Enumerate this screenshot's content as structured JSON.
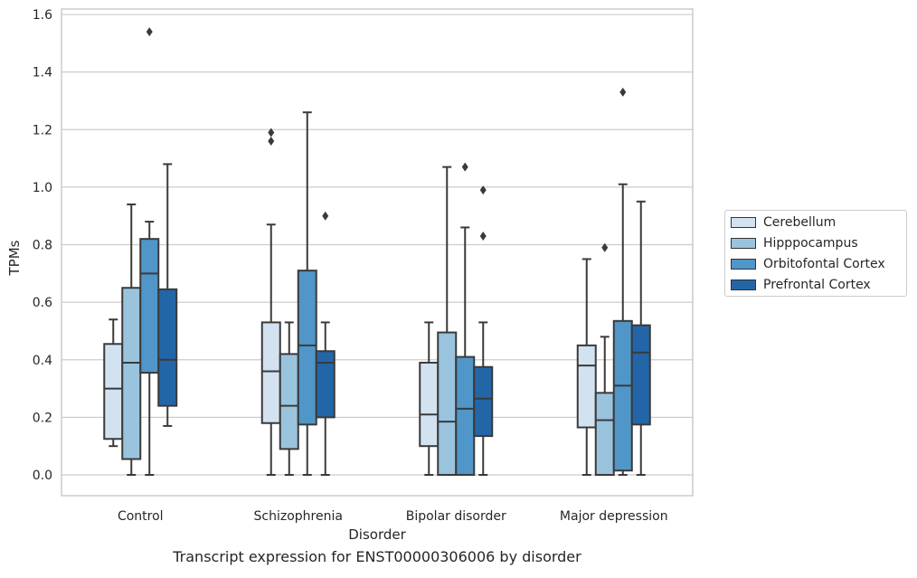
{
  "chart_data": {
    "type": "box",
    "title": "",
    "caption": "Transcript expression for ENST00000306006 by disorder",
    "xlabel": "Disorder",
    "ylabel": "TPMs",
    "ylim": [
      -0.075,
      1.62
    ],
    "yticks": [
      "0.0",
      "0.2",
      "0.4",
      "0.6",
      "0.8",
      "1.0",
      "1.2",
      "1.4",
      "1.6"
    ],
    "grid": "horizontal",
    "legend_position": "right",
    "categories": [
      "Control",
      "Schizophrenia",
      "Bipolar disorder",
      "Major depression"
    ],
    "series": [
      {
        "name": "Cerebellum",
        "color": "#d2e2f0",
        "boxes": [
          {
            "whisker_low": 0.1,
            "q1": 0.125,
            "median": 0.3,
            "q3": 0.455,
            "whisker_high": 0.54,
            "outliers": []
          },
          {
            "whisker_low": 0.0,
            "q1": 0.18,
            "median": 0.36,
            "q3": 0.53,
            "whisker_high": 0.87,
            "outliers": [
              1.16,
              1.19
            ]
          },
          {
            "whisker_low": 0.0,
            "q1": 0.1,
            "median": 0.21,
            "q3": 0.39,
            "whisker_high": 0.53,
            "outliers": []
          },
          {
            "whisker_low": 0.0,
            "q1": 0.165,
            "median": 0.38,
            "q3": 0.45,
            "whisker_high": 0.75,
            "outliers": []
          }
        ]
      },
      {
        "name": "Hipppocampus",
        "color": "#9ac4de",
        "boxes": [
          {
            "whisker_low": 0.0,
            "q1": 0.055,
            "median": 0.39,
            "q3": 0.65,
            "whisker_high": 0.94,
            "outliers": []
          },
          {
            "whisker_low": 0.0,
            "q1": 0.09,
            "median": 0.24,
            "q3": 0.42,
            "whisker_high": 0.53,
            "outliers": []
          },
          {
            "whisker_low": 0.0,
            "q1": 0.0,
            "median": 0.185,
            "q3": 0.495,
            "whisker_high": 1.07,
            "outliers": []
          },
          {
            "whisker_low": 0.0,
            "q1": 0.0,
            "median": 0.19,
            "q3": 0.285,
            "whisker_high": 0.48,
            "outliers": [
              0.79
            ]
          }
        ]
      },
      {
        "name": "Orbitofontal Cortex",
        "color": "#5096c8",
        "boxes": [
          {
            "whisker_low": 0.0,
            "q1": 0.355,
            "median": 0.7,
            "q3": 0.82,
            "whisker_high": 0.88,
            "outliers": [
              1.54
            ]
          },
          {
            "whisker_low": 0.0,
            "q1": 0.175,
            "median": 0.45,
            "q3": 0.71,
            "whisker_high": 1.26,
            "outliers": []
          },
          {
            "whisker_low": 0.0,
            "q1": 0.0,
            "median": 0.23,
            "q3": 0.41,
            "whisker_high": 0.86,
            "outliers": [
              1.07
            ]
          },
          {
            "whisker_low": 0.0,
            "q1": 0.015,
            "median": 0.31,
            "q3": 0.535,
            "whisker_high": 1.01,
            "outliers": [
              1.33
            ]
          }
        ]
      },
      {
        "name": "Prefrontal Cortex",
        "color": "#2366a8",
        "boxes": [
          {
            "whisker_low": 0.17,
            "q1": 0.24,
            "median": 0.4,
            "q3": 0.645,
            "whisker_high": 1.08,
            "outliers": []
          },
          {
            "whisker_low": 0.0,
            "q1": 0.2,
            "median": 0.39,
            "q3": 0.43,
            "whisker_high": 0.53,
            "outliers": [
              0.9
            ]
          },
          {
            "whisker_low": 0.0,
            "q1": 0.135,
            "median": 0.265,
            "q3": 0.375,
            "whisker_high": 0.53,
            "outliers": [
              0.83,
              0.99
            ]
          },
          {
            "whisker_low": 0.0,
            "q1": 0.175,
            "median": 0.425,
            "q3": 0.52,
            "whisker_high": 0.95,
            "outliers": []
          }
        ]
      }
    ]
  }
}
